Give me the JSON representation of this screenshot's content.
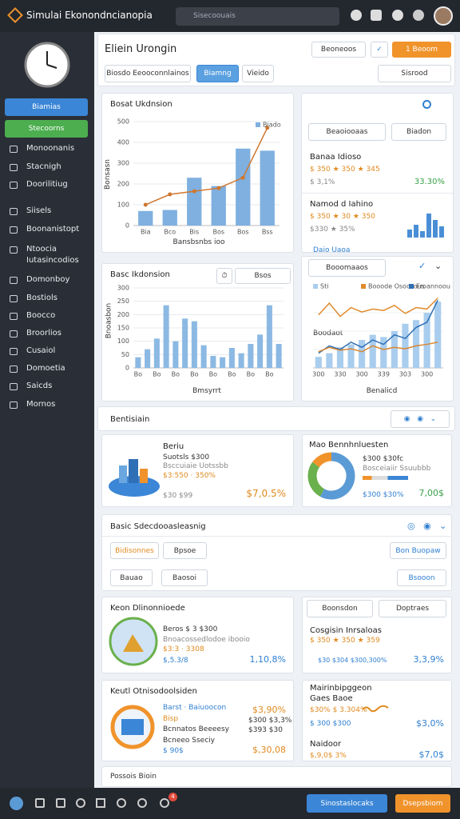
{
  "topbar": {
    "app_name": "Simulai Ekonondncianopia",
    "search_placeholder": "Sisecoouais"
  },
  "sidebar": {
    "buttons": [
      "Biamias",
      "Stecoorns"
    ],
    "menu": [
      "Monoonanis",
      "Stacnigh",
      "Doorilitiug",
      "Siisels",
      "Boonanistopt",
      "Ntoocia",
      "Iutasincodios",
      "Domonboy",
      "Bostiols",
      "Boocco",
      "Broorlios",
      "Cusaiol",
      "Domoetia",
      "Saicds",
      "Mornos"
    ]
  },
  "header": {
    "title": "Eliein Urongin",
    "buttons": [
      "Beoneoos",
      "1 Beoom"
    ],
    "tabs": [
      "Biosdo Eeooconnlainos",
      "Biamng",
      "Vieido"
    ],
    "search_placeholder": "Sisrood"
  },
  "chart_data": [
    {
      "type": "bar",
      "title": "Bosat Ukdnsion",
      "x_label": "Bansbsnbs ioo",
      "y_label": "Bonsasn",
      "legend": "top-right",
      "categories": [
        "Bia",
        "Bco",
        "Bis",
        "Bos",
        "Bos",
        "Bss"
      ],
      "ylim": [
        0,
        500
      ],
      "yticks": [
        0,
        100,
        200,
        300,
        400,
        500
      ],
      "grid": true,
      "series": [
        {
          "name": "Biado",
          "type": "bar",
          "color": "#7fb0e0",
          "values": [
            70,
            75,
            230,
            190,
            370,
            360
          ]
        },
        {
          "type": "line",
          "color": "#d0772e",
          "values": [
            100,
            150,
            165,
            180,
            230,
            470
          ]
        }
      ]
    },
    {
      "type": "bar",
      "title": "Basc Ikdonsion",
      "x_label": "Bmsyrrt",
      "y_label": "Bnoasbon",
      "control": "Bsos",
      "categories": [
        "Bo",
        null,
        "Bo",
        null,
        "Bo",
        null,
        "Bo",
        null,
        "Bo",
        null,
        "Bo",
        null,
        "Bo",
        null,
        "Bo",
        null
      ],
      "ylim": [
        0,
        300
      ],
      "yticks": [
        0,
        50,
        100,
        150,
        200,
        250,
        300
      ],
      "grid": true,
      "series": [
        {
          "type": "bar",
          "color": "#8bb9e3",
          "values": [
            40,
            70,
            110,
            235,
            100,
            185,
            175,
            85,
            45,
            40,
            75,
            55,
            90,
            125,
            235,
            90
          ]
        }
      ]
    },
    {
      "type": "line",
      "x_label": "Benalicd",
      "annotation": "Boodaot",
      "legend": "top",
      "categories": [
        "300",
        null,
        "330",
        null,
        "300",
        null,
        "339",
        null,
        "303",
        null,
        "300",
        null
      ],
      "ylim": [
        0,
        100
      ],
      "grid": true,
      "series": [
        {
          "name": "Sti",
          "type": "bar",
          "color": "#a9cdee",
          "values": [
            15,
            20,
            28,
            32,
            38,
            45,
            42,
            50,
            60,
            65,
            75,
            90
          ]
        },
        {
          "name": "Booode Osocsous",
          "type": "line",
          "color": "#e08a2c",
          "values": [
            72,
            88,
            70,
            82,
            76,
            80,
            78,
            85,
            74,
            82,
            80,
            95
          ]
        },
        {
          "name": "Eroannoou",
          "type": "line",
          "color": "#2f6fb5",
          "values": [
            20,
            30,
            25,
            35,
            28,
            38,
            32,
            45,
            40,
            55,
            62,
            92
          ]
        },
        {
          "type": "line",
          "color": "#d9862f",
          "values": [
            22,
            28,
            24,
            26,
            22,
            30,
            25,
            28,
            26,
            30,
            32,
            35
          ]
        }
      ]
    },
    {
      "type": "donut",
      "title": "Mao Bennhnluesten",
      "values": [
        58,
        27,
        15
      ],
      "colors": [
        "#5b9bd5",
        "#6ab04c",
        "#f0932b"
      ]
    }
  ],
  "overview_panel": {
    "dropdowns": [
      "Beaoiooaas",
      "Biadon"
    ],
    "items": [
      {
        "name": "Banaa Idioso",
        "stats": "$ 350 ★ 350 ★ 345",
        "change": "33.30%",
        "sub": "$ 3,1%"
      },
      {
        "name": "Namod d Iahino",
        "stats": "$ 350 ★ 30 ★ 350",
        "sub": "$330 ★ 35%"
      }
    ],
    "link": "Daio Uaoa"
  },
  "line_panel": {
    "dropdown": "Booomaaos"
  },
  "section1": {
    "title": "Bentisiain"
  },
  "card_d": {
    "title": "Beriu",
    "line1": "Suotsls $300",
    "line2": "Bsccuiaie Uotssbb",
    "line3": "$3:550 · 350%",
    "line4": "$30 $99",
    "total": "$7,0.5%"
  },
  "card_e": {
    "line1": "$300 $30fc",
    "line2": "Bosceiaiir Ssuubbb",
    "line3": "$300 $30%",
    "total": "7,00$"
  },
  "section2": {
    "title": "Basic Sdecdooasleasnig",
    "chips": [
      "Bidisonnes",
      "Bpsoe",
      "Bauao",
      "Baosoi"
    ],
    "buttons": [
      "Bon Buopaw",
      "Bsooon"
    ]
  },
  "card_f": {
    "title": "Keon Dlinonnioede",
    "line1": "Beros $ 3 $300",
    "line2": "Bnoacossedlodoe ibooio",
    "line3": "$3:3 · 3308",
    "line4": "$,5.3/8",
    "total": "1,10,8%"
  },
  "card_g": {
    "dropdowns": [
      "Boonsdon",
      "Doptraes"
    ],
    "title": "Cosgisin Inrsaloas",
    "line1": "$ 350 ★ 350 ★ 359",
    "line2": "$30 $304  $300,300%",
    "total": "3,3,9%"
  },
  "card_h": {
    "title": "Keutl Otnisodoolsiden",
    "line1": "Barst · Baiuoocon",
    "line1_value": "$3,90%",
    "line2": "Bisp",
    "line2_value": "$300 $3,3%",
    "line3": "Bcnnatos Beeeesy",
    "line3_value": "$393 $30",
    "line4": "Bcneeo Sseciy",
    "line5": "$ 90$",
    "total": "$,30,08"
  },
  "card_i": {
    "title": "Mairinbipggeon",
    "subtitle": "Gaes Baoe",
    "line1": "$30% $ 3.304%",
    "line2": "$ 300 $300",
    "line2_value": "$3,0%",
    "line3": "Naidoor",
    "line4": "$,9,0$ 3%",
    "total": "$7,0$"
  },
  "footer": {
    "title": "Possois Bioin"
  },
  "bottombar": {
    "badge": "4",
    "buttons": [
      "Sinostaslocaks",
      "Dsepsbiom"
    ]
  }
}
